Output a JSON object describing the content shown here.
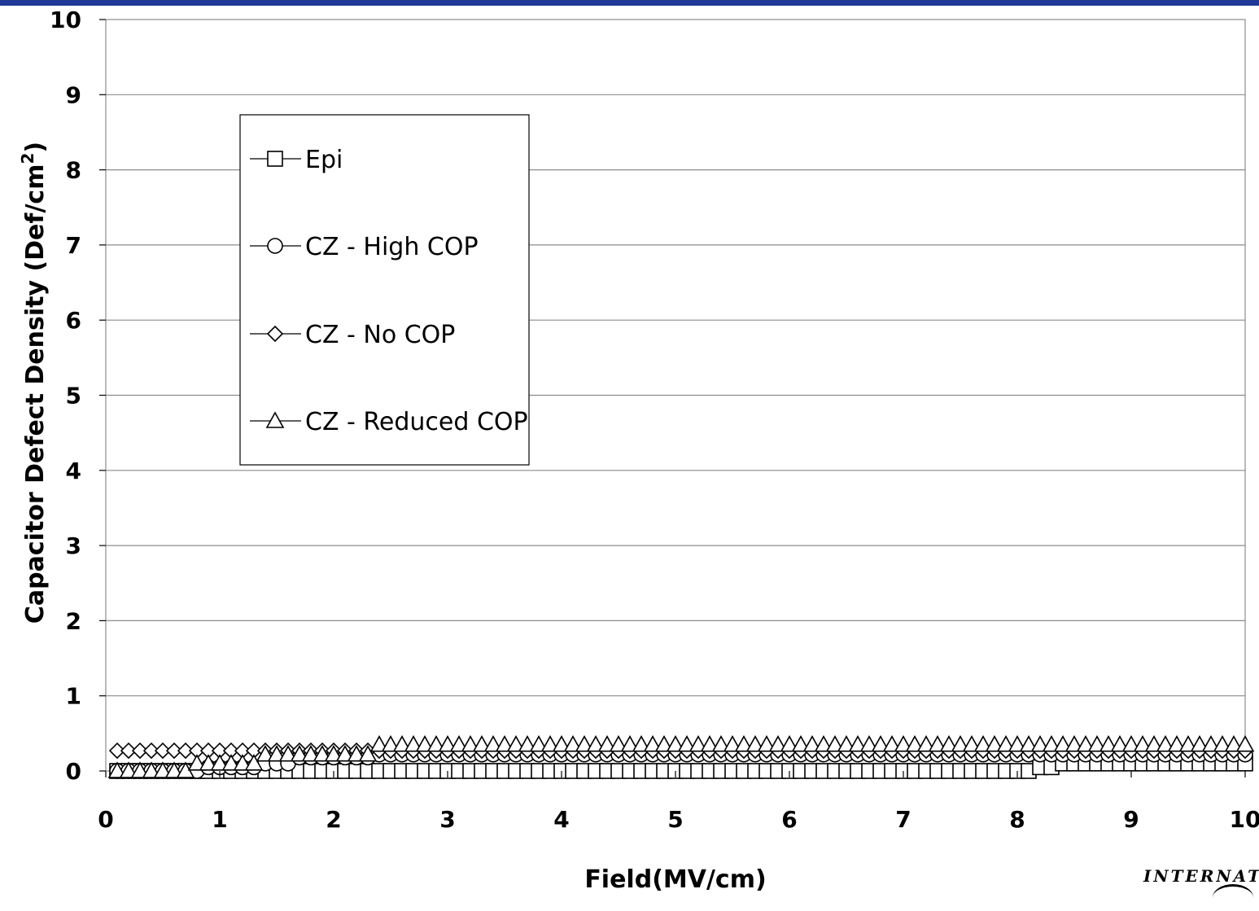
{
  "chart_data": {
    "type": "scatter",
    "title": "",
    "xlabel": "Field(MV/cm)",
    "ylabel": "Capacitor Defect Density (Def/cm",
    "ylabel_superscript": "2",
    "ylabel_close": ")",
    "xlim": [
      0,
      10
    ],
    "ylim": [
      0,
      10
    ],
    "xticks": [
      "0",
      "1",
      "2",
      "3",
      "4",
      "5",
      "6",
      "7",
      "8",
      "9",
      "10"
    ],
    "yticks": [
      "0",
      "1",
      "2",
      "3",
      "4",
      "5",
      "6",
      "7",
      "8",
      "9",
      "10"
    ],
    "grid": "horizontal",
    "legend_position": "upper-left",
    "x_step": 0.1,
    "series": [
      {
        "name": "Epi",
        "marker": "square",
        "segments": [
          {
            "x_from": 0.1,
            "x_to": 8.1,
            "y": 0.0
          },
          {
            "x_from": 8.2,
            "x_to": 8.3,
            "y": 0.05
          },
          {
            "x_from": 8.4,
            "x_to": 10.0,
            "y": 0.1
          }
        ]
      },
      {
        "name": "CZ - High COP",
        "marker": "circle",
        "segments": [
          {
            "x_from": 0.1,
            "x_to": 0.8,
            "y": 0.0
          },
          {
            "x_from": 0.9,
            "x_to": 1.3,
            "y": 0.05
          },
          {
            "x_from": 1.4,
            "x_to": 1.6,
            "y": 0.1
          },
          {
            "x_from": 1.7,
            "x_to": 2.3,
            "y": 0.18
          },
          {
            "x_from": 2.4,
            "x_to": 10.0,
            "y": 0.22
          }
        ]
      },
      {
        "name": "CZ - No COP",
        "marker": "diamond",
        "segments": [
          {
            "x_from": 0.1,
            "x_to": 10.0,
            "y": 0.27
          }
        ]
      },
      {
        "name": "CZ - Reduced COP",
        "marker": "triangle",
        "segments": [
          {
            "x_from": 0.1,
            "x_to": 0.7,
            "y": 0.0
          },
          {
            "x_from": 0.8,
            "x_to": 1.3,
            "y": 0.1
          },
          {
            "x_from": 1.4,
            "x_to": 2.3,
            "y": 0.22
          },
          {
            "x_from": 2.4,
            "x_to": 10.0,
            "y": 0.35
          }
        ]
      }
    ]
  },
  "logo": {
    "text": "INTERNAT"
  }
}
